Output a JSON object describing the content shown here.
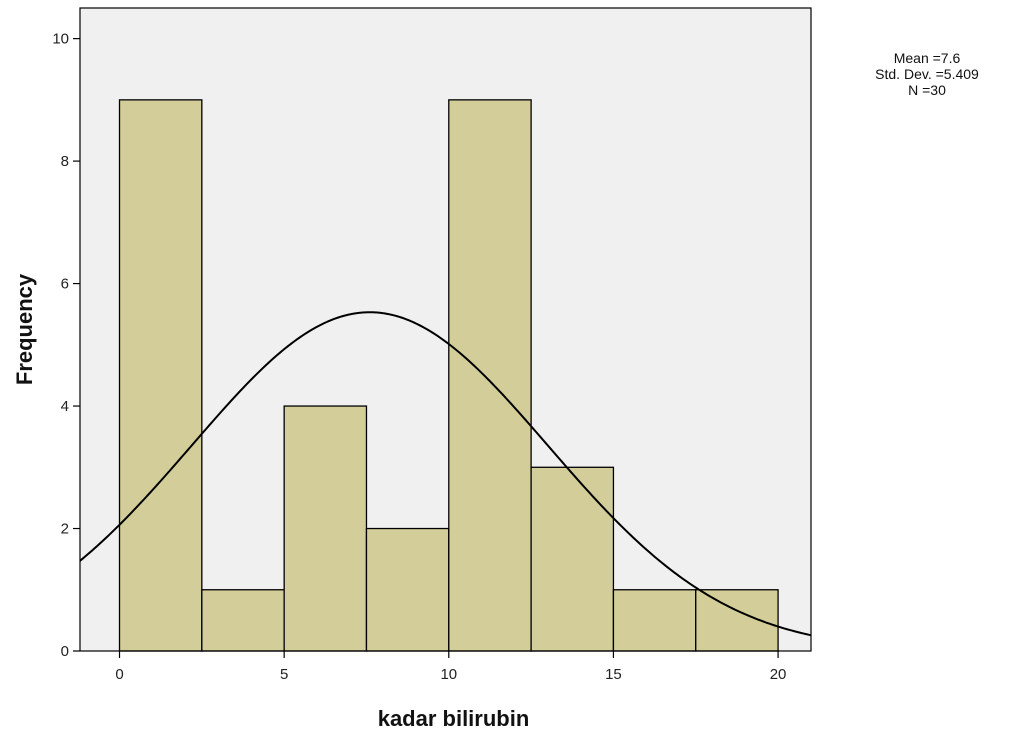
{
  "chart_data": {
    "type": "bar",
    "subtype": "histogram",
    "bin_edges": [
      0,
      2.5,
      5,
      7.5,
      10,
      12.5,
      15,
      17.5,
      20
    ],
    "values": [
      9,
      1,
      4,
      2,
      9,
      3,
      1,
      1
    ],
    "xlabel": "kadar bilirubin",
    "ylabel": "Frequency",
    "xlim": [
      -1.2,
      21
    ],
    "ylim": [
      0,
      10.5
    ],
    "x_ticks": [
      0,
      5,
      10,
      15,
      20
    ],
    "y_ticks": [
      0,
      2,
      4,
      6,
      8,
      10
    ],
    "normal_curve": {
      "mean": 7.6,
      "std_dev": 5.409,
      "n": 30,
      "bin_width": 2.5
    },
    "stats": {
      "mean_label": "Mean =7.6",
      "std_label": "Std. Dev. =5.409",
      "n_label": "N =30"
    },
    "colors": {
      "plot_background": "#f0f0f0",
      "bar_fill": "#d3ce99",
      "bar_stroke": "#000000",
      "curve": "#000000"
    },
    "grid": false,
    "legend": "none"
  }
}
